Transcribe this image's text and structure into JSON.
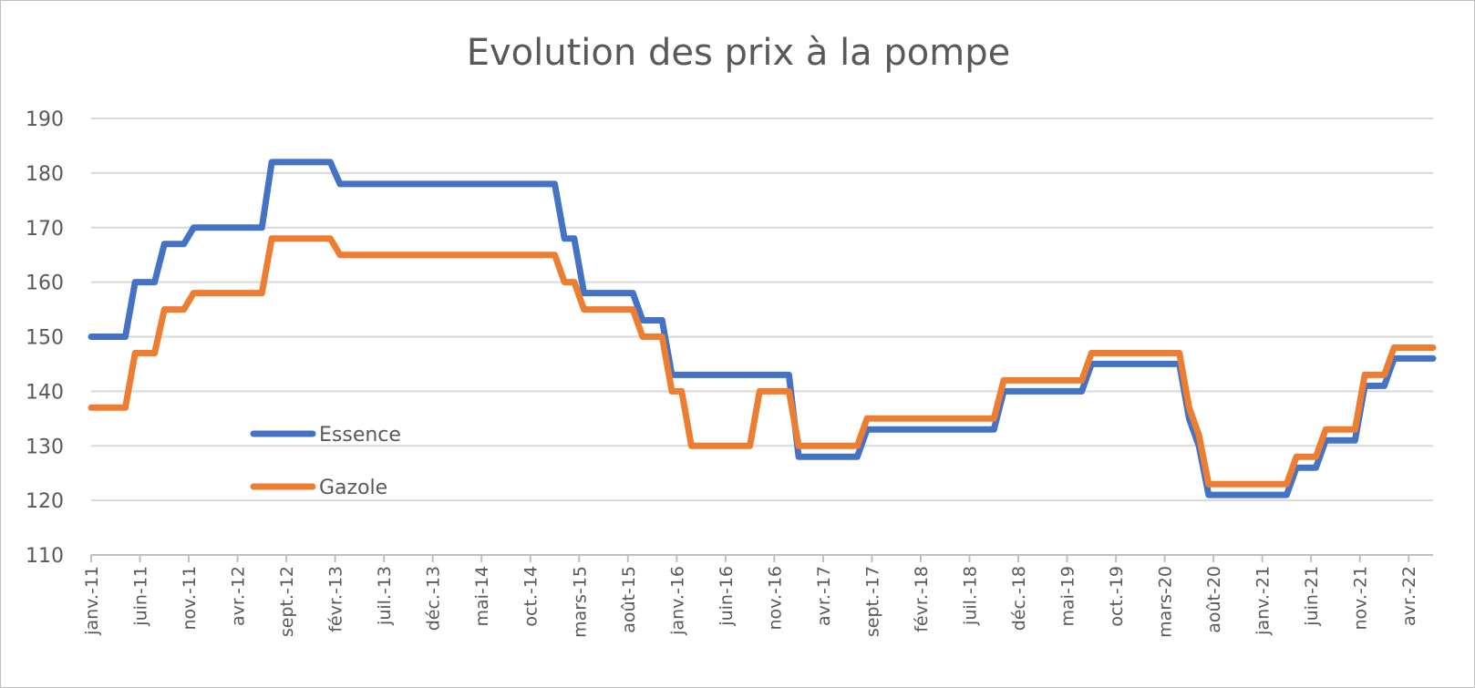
{
  "chart_data": {
    "type": "line",
    "title": "Evolution des prix à la pompe",
    "xlabel": "",
    "ylabel": "",
    "ylim": [
      110,
      190
    ],
    "y_ticks": [
      110,
      120,
      130,
      140,
      150,
      160,
      170,
      180,
      190
    ],
    "x_tick_labels": [
      "janv.-11",
      "juin-11",
      "nov.-11",
      "avr.-12",
      "sept.-12",
      "févr.-13",
      "juil.-13",
      "déc.-13",
      "mai-14",
      "oct.-14",
      "mars-15",
      "août-15",
      "janv.-16",
      "juin-16",
      "nov.-16",
      "avr.-17",
      "sept.-17",
      "févr.-18",
      "juil.-18",
      "déc.-18",
      "mai-19",
      "oct.-19",
      "mars-20",
      "août-20",
      "janv.-21",
      "juin-21",
      "nov.-21",
      "avr.-22"
    ],
    "grid": true,
    "legend": "left-center",
    "series": [
      {
        "name": "Essence",
        "color": "#4472C4",
        "points": [
          [
            0,
            150
          ],
          [
            3.5,
            150
          ],
          [
            4.5,
            160
          ],
          [
            6.5,
            160
          ],
          [
            7.5,
            167
          ],
          [
            9.5,
            167
          ],
          [
            10.5,
            170
          ],
          [
            17.5,
            170
          ],
          [
            18.5,
            182
          ],
          [
            24.5,
            182
          ],
          [
            25.5,
            178
          ],
          [
            47.5,
            178
          ],
          [
            48.5,
            168
          ],
          [
            49.5,
            168
          ],
          [
            50.5,
            158
          ],
          [
            55.5,
            158
          ],
          [
            56.5,
            153
          ],
          [
            58.5,
            153
          ],
          [
            59.5,
            143
          ],
          [
            71.5,
            143
          ],
          [
            72.5,
            128
          ],
          [
            78.5,
            128
          ],
          [
            79.5,
            133
          ],
          [
            92.5,
            133
          ],
          [
            93.5,
            140
          ],
          [
            101.5,
            140
          ],
          [
            102.5,
            145
          ],
          [
            111.5,
            145
          ],
          [
            112.5,
            135
          ],
          [
            113.5,
            130
          ],
          [
            114.5,
            121
          ],
          [
            122.5,
            121
          ],
          [
            123.5,
            126
          ],
          [
            125.5,
            126
          ],
          [
            126.5,
            131
          ],
          [
            129.5,
            131
          ],
          [
            130.5,
            141
          ],
          [
            132.5,
            141
          ],
          [
            133.5,
            146
          ],
          [
            137.5,
            146
          ]
        ]
      },
      {
        "name": "Gazole",
        "color": "#ED7D31",
        "points": [
          [
            0,
            137
          ],
          [
            3.5,
            137
          ],
          [
            4.5,
            147
          ],
          [
            6.5,
            147
          ],
          [
            7.5,
            155
          ],
          [
            9.5,
            155
          ],
          [
            10.5,
            158
          ],
          [
            17.5,
            158
          ],
          [
            18.5,
            168
          ],
          [
            24.5,
            168
          ],
          [
            25.5,
            165
          ],
          [
            47.5,
            165
          ],
          [
            48.5,
            160
          ],
          [
            49.5,
            160
          ],
          [
            50.5,
            155
          ],
          [
            55.5,
            155
          ],
          [
            56.5,
            150
          ],
          [
            58.5,
            150
          ],
          [
            59.5,
            140
          ],
          [
            60.5,
            140
          ],
          [
            61.5,
            130
          ],
          [
            67.5,
            130
          ],
          [
            68.5,
            140
          ],
          [
            71.5,
            140
          ],
          [
            72.5,
            130
          ],
          [
            78.5,
            130
          ],
          [
            79.5,
            135
          ],
          [
            92.5,
            135
          ],
          [
            93.5,
            142
          ],
          [
            101.5,
            142
          ],
          [
            102.5,
            147
          ],
          [
            111.5,
            147
          ],
          [
            112.5,
            137
          ],
          [
            113.5,
            132
          ],
          [
            114.5,
            123
          ],
          [
            122.5,
            123
          ],
          [
            123.5,
            128
          ],
          [
            125.5,
            128
          ],
          [
            126.5,
            133
          ],
          [
            129.5,
            133
          ],
          [
            130.5,
            143
          ],
          [
            132.5,
            143
          ],
          [
            133.5,
            148
          ],
          [
            137.5,
            148
          ]
        ]
      }
    ]
  }
}
